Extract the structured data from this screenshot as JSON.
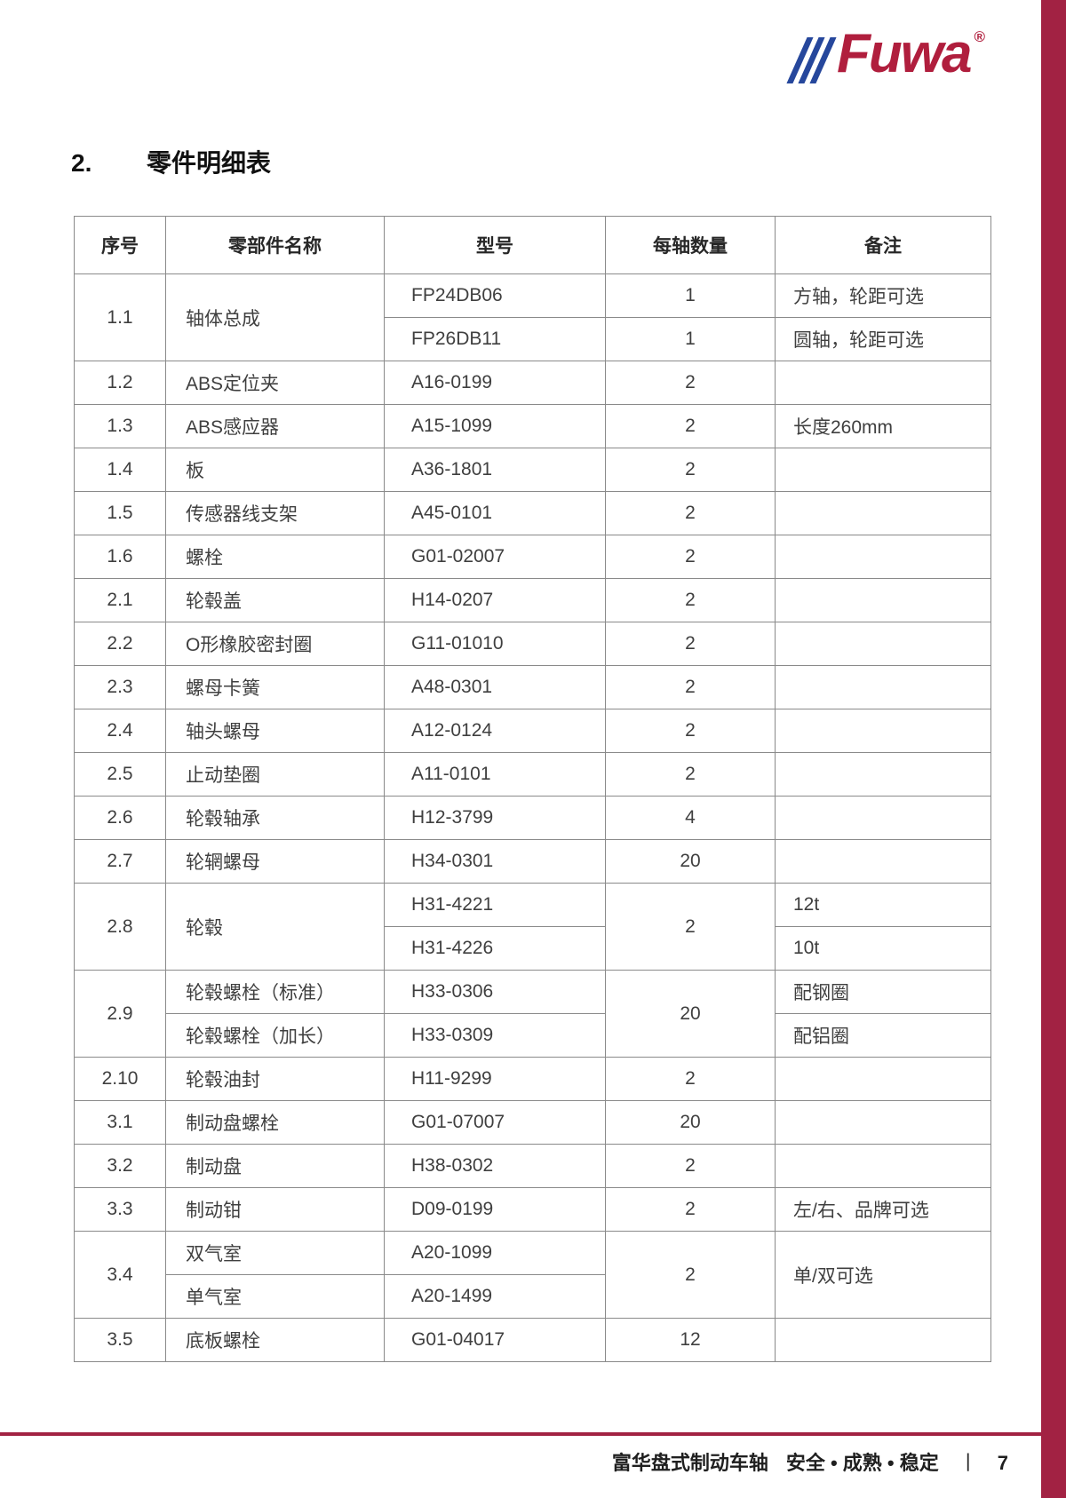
{
  "logo": {
    "text": "Fuwa",
    "registered": "®"
  },
  "heading": {
    "number": "2.",
    "title": "零件明细表"
  },
  "table": {
    "headers": [
      "序号",
      "零部件名称",
      "型号",
      "每轴数量",
      "备注"
    ],
    "rows": [
      [
        {
          "c": 0,
          "t": "1.1",
          "rs": 2
        },
        {
          "c": 1,
          "t": "轴体总成",
          "rs": 2
        },
        {
          "c": 2,
          "t": "FP24DB06"
        },
        {
          "c": 3,
          "t": "1"
        },
        {
          "c": 4,
          "t": "方轴，轮距可选"
        }
      ],
      [
        {
          "c": 2,
          "t": "FP26DB11"
        },
        {
          "c": 3,
          "t": "1"
        },
        {
          "c": 4,
          "t": "圆轴，轮距可选"
        }
      ],
      [
        {
          "c": 0,
          "t": "1.2"
        },
        {
          "c": 1,
          "t": "ABS定位夹"
        },
        {
          "c": 2,
          "t": "A16-0199"
        },
        {
          "c": 3,
          "t": "2"
        },
        {
          "c": 4,
          "t": ""
        }
      ],
      [
        {
          "c": 0,
          "t": "1.3"
        },
        {
          "c": 1,
          "t": "ABS感应器"
        },
        {
          "c": 2,
          "t": "A15-1099"
        },
        {
          "c": 3,
          "t": "2"
        },
        {
          "c": 4,
          "t": "长度260mm"
        }
      ],
      [
        {
          "c": 0,
          "t": "1.4"
        },
        {
          "c": 1,
          "t": "板"
        },
        {
          "c": 2,
          "t": "A36-1801"
        },
        {
          "c": 3,
          "t": "2"
        },
        {
          "c": 4,
          "t": ""
        }
      ],
      [
        {
          "c": 0,
          "t": "1.5"
        },
        {
          "c": 1,
          "t": "传感器线支架"
        },
        {
          "c": 2,
          "t": "A45-0101"
        },
        {
          "c": 3,
          "t": "2"
        },
        {
          "c": 4,
          "t": ""
        }
      ],
      [
        {
          "c": 0,
          "t": "1.6"
        },
        {
          "c": 1,
          "t": "螺栓"
        },
        {
          "c": 2,
          "t": "G01-02007"
        },
        {
          "c": 3,
          "t": "2"
        },
        {
          "c": 4,
          "t": ""
        }
      ],
      [
        {
          "c": 0,
          "t": "2.1"
        },
        {
          "c": 1,
          "t": "轮毂盖"
        },
        {
          "c": 2,
          "t": "H14-0207"
        },
        {
          "c": 3,
          "t": "2"
        },
        {
          "c": 4,
          "t": ""
        }
      ],
      [
        {
          "c": 0,
          "t": "2.2"
        },
        {
          "c": 1,
          "t": "O形橡胶密封圈"
        },
        {
          "c": 2,
          "t": "G11-01010"
        },
        {
          "c": 3,
          "t": "2"
        },
        {
          "c": 4,
          "t": ""
        }
      ],
      [
        {
          "c": 0,
          "t": "2.3"
        },
        {
          "c": 1,
          "t": "螺母卡簧"
        },
        {
          "c": 2,
          "t": "A48-0301"
        },
        {
          "c": 3,
          "t": "2"
        },
        {
          "c": 4,
          "t": ""
        }
      ],
      [
        {
          "c": 0,
          "t": "2.4"
        },
        {
          "c": 1,
          "t": "轴头螺母"
        },
        {
          "c": 2,
          "t": "A12-0124"
        },
        {
          "c": 3,
          "t": "2"
        },
        {
          "c": 4,
          "t": ""
        }
      ],
      [
        {
          "c": 0,
          "t": "2.5"
        },
        {
          "c": 1,
          "t": "止动垫圈"
        },
        {
          "c": 2,
          "t": "A11-0101"
        },
        {
          "c": 3,
          "t": "2"
        },
        {
          "c": 4,
          "t": ""
        }
      ],
      [
        {
          "c": 0,
          "t": "2.6"
        },
        {
          "c": 1,
          "t": "轮毂轴承"
        },
        {
          "c": 2,
          "t": "H12-3799"
        },
        {
          "c": 3,
          "t": "4"
        },
        {
          "c": 4,
          "t": ""
        }
      ],
      [
        {
          "c": 0,
          "t": "2.7"
        },
        {
          "c": 1,
          "t": "轮辋螺母"
        },
        {
          "c": 2,
          "t": "H34-0301"
        },
        {
          "c": 3,
          "t": "20"
        },
        {
          "c": 4,
          "t": ""
        }
      ],
      [
        {
          "c": 0,
          "t": "2.8",
          "rs": 2
        },
        {
          "c": 1,
          "t": "轮毂",
          "rs": 2
        },
        {
          "c": 2,
          "t": "H31-4221"
        },
        {
          "c": 3,
          "t": "2",
          "rs": 2
        },
        {
          "c": 4,
          "t": "12t"
        }
      ],
      [
        {
          "c": 2,
          "t": "H31-4226"
        },
        {
          "c": 4,
          "t": "10t"
        }
      ],
      [
        {
          "c": 0,
          "t": "2.9",
          "rs": 2
        },
        {
          "c": 1,
          "t": "轮毂螺栓（标准）"
        },
        {
          "c": 2,
          "t": "H33-0306"
        },
        {
          "c": 3,
          "t": "20",
          "rs": 2
        },
        {
          "c": 4,
          "t": "配钢圈"
        }
      ],
      [
        {
          "c": 1,
          "t": "轮毂螺栓（加长）"
        },
        {
          "c": 2,
          "t": "H33-0309"
        },
        {
          "c": 4,
          "t": "配铝圈"
        }
      ],
      [
        {
          "c": 0,
          "t": "2.10"
        },
        {
          "c": 1,
          "t": "轮毂油封"
        },
        {
          "c": 2,
          "t": "H11-9299"
        },
        {
          "c": 3,
          "t": "2"
        },
        {
          "c": 4,
          "t": ""
        }
      ],
      [
        {
          "c": 0,
          "t": "3.1"
        },
        {
          "c": 1,
          "t": "制动盘螺栓"
        },
        {
          "c": 2,
          "t": "G01-07007"
        },
        {
          "c": 3,
          "t": "20"
        },
        {
          "c": 4,
          "t": ""
        }
      ],
      [
        {
          "c": 0,
          "t": "3.2"
        },
        {
          "c": 1,
          "t": "制动盘"
        },
        {
          "c": 2,
          "t": "H38-0302"
        },
        {
          "c": 3,
          "t": "2"
        },
        {
          "c": 4,
          "t": ""
        }
      ],
      [
        {
          "c": 0,
          "t": "3.3"
        },
        {
          "c": 1,
          "t": "制动钳"
        },
        {
          "c": 2,
          "t": "D09-0199"
        },
        {
          "c": 3,
          "t": "2"
        },
        {
          "c": 4,
          "t": "左/右、品牌可选"
        }
      ],
      [
        {
          "c": 0,
          "t": "3.4",
          "rs": 2
        },
        {
          "c": 1,
          "t": "双气室"
        },
        {
          "c": 2,
          "t": "A20-1099"
        },
        {
          "c": 3,
          "t": "2",
          "rs": 2
        },
        {
          "c": 4,
          "t": "单/双可选",
          "rs": 2
        }
      ],
      [
        {
          "c": 1,
          "t": "单气室"
        },
        {
          "c": 2,
          "t": "A20-1499"
        }
      ],
      [
        {
          "c": 0,
          "t": "3.5"
        },
        {
          "c": 1,
          "t": "底板螺栓"
        },
        {
          "c": 2,
          "t": "G01-04017"
        },
        {
          "c": 3,
          "t": "12"
        },
        {
          "c": 4,
          "t": ""
        }
      ]
    ]
  },
  "footer": {
    "product": "富华盘式制动车轴",
    "slogan": "安全 • 成熟 • 稳定",
    "separator": "丨",
    "page_number": "7"
  },
  "colors": {
    "accent_red": "#A22243",
    "logo_red": "#B01E3D",
    "logo_blue": "#26479C"
  }
}
